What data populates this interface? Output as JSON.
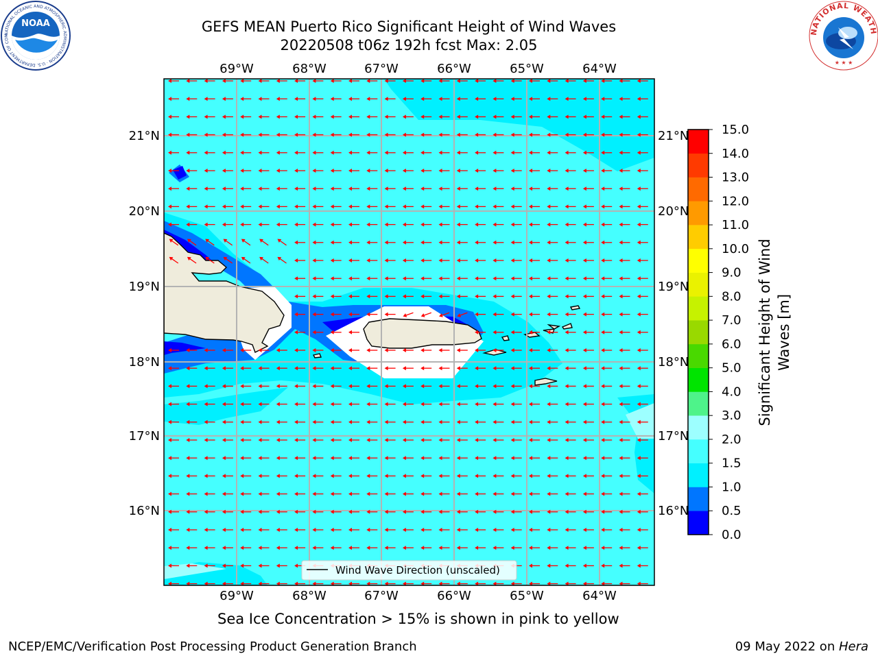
{
  "title": {
    "line1": "GEFS MEAN Puerto Rico Significant Height of Wind Waves",
    "line2": "20220508 t06z 192h fcst   Max: 2.05"
  },
  "logos": {
    "left": "NOAA",
    "left_ring_text": "NATIONAL OCEANIC AND ATMOSPHERIC ADMINISTRATION · U.S. DEPARTMENT OF COMMERCE",
    "right_ring_text": "NATIONAL WEATHER SERVICE"
  },
  "map": {
    "lon_labels": [
      "69°W",
      "68°W",
      "67°W",
      "66°W",
      "65°W",
      "64°W"
    ],
    "lat_labels": [
      "21°N",
      "20°N",
      "19°N",
      "18°N",
      "17°N",
      "16°N"
    ],
    "legend_label": "Wind Wave Direction (unscaled)",
    "arrow_color": "#ff0000",
    "land_color": "#efecdc"
  },
  "colorbar": {
    "label_line1": "Significant Height of Wind",
    "label_line2": "Waves [m]",
    "ticks": [
      "0.0",
      "0.5",
      "1.0",
      "1.5",
      "2.0",
      "3.0",
      "4.0",
      "5.0",
      "6.0",
      "7.0",
      "8.0",
      "9.0",
      "10.0",
      "11.0",
      "12.0",
      "13.0",
      "14.0",
      "15.0"
    ],
    "colors": [
      "#0000ff",
      "#0076ff",
      "#00f0ff",
      "#45ffff",
      "#9dffff",
      "#4ef38a",
      "#00e400",
      "#49d900",
      "#99d900",
      "#c6f200",
      "#eaf200",
      "#ffff00",
      "#ffcc00",
      "#ff9a00",
      "#ff6a00",
      "#ff3a00",
      "#ff0000"
    ]
  },
  "caption": "Sea Ice Concentration > 15% is shown in pink to yellow",
  "footer": {
    "left": "NCEP/EMC/Verification Post Processing Product Generation Branch",
    "right_prefix": "09 May 2022 on ",
    "right_host": "Hera"
  }
}
